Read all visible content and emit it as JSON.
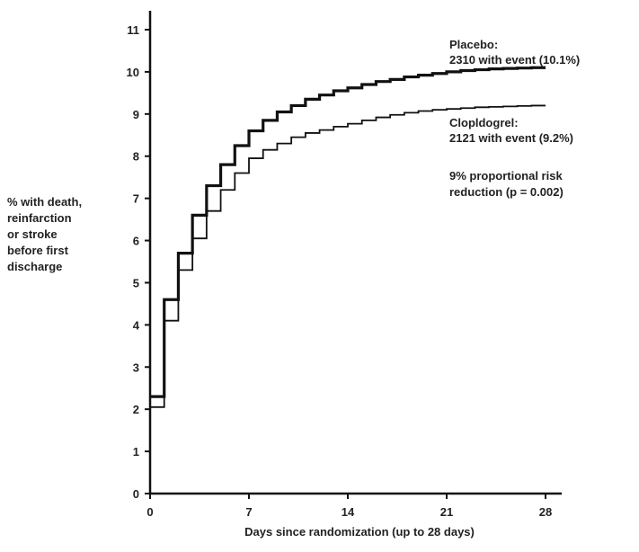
{
  "chart_data": {
    "type": "line",
    "step": true,
    "title": "",
    "xlabel": "Days since randomization (up to 28 days)",
    "ylabel_lines": [
      "% with death,",
      "reinfarction",
      "or stroke",
      "before first",
      "discharge"
    ],
    "xlim": [
      0,
      28
    ],
    "ylim": [
      0,
      11
    ],
    "xticks": [
      0,
      7,
      14,
      21,
      28
    ],
    "yticks": [
      0,
      1,
      2,
      3,
      4,
      5,
      6,
      7,
      8,
      9,
      10,
      11
    ],
    "grid": false,
    "series": [
      {
        "name": "Placebo",
        "color": "#111111",
        "stroke": "bold",
        "x": [
          0,
          1,
          2,
          3,
          4,
          5,
          6,
          7,
          8,
          9,
          10,
          11,
          12,
          13,
          14,
          15,
          16,
          17,
          18,
          19,
          20,
          21,
          22,
          23,
          24,
          25,
          26,
          27,
          28
        ],
        "y": [
          2.3,
          4.6,
          5.7,
          6.6,
          7.3,
          7.8,
          8.25,
          8.6,
          8.85,
          9.05,
          9.2,
          9.35,
          9.45,
          9.55,
          9.62,
          9.7,
          9.77,
          9.82,
          9.88,
          9.92,
          9.96,
          10.0,
          10.03,
          10.05,
          10.07,
          10.08,
          10.09,
          10.1,
          10.1
        ]
      },
      {
        "name": "Clopidogrel",
        "color": "#111111",
        "stroke": "normal",
        "x": [
          0,
          1,
          2,
          3,
          4,
          5,
          6,
          7,
          8,
          9,
          10,
          11,
          12,
          13,
          14,
          15,
          16,
          17,
          18,
          19,
          20,
          21,
          22,
          23,
          24,
          25,
          26,
          27,
          28
        ],
        "y": [
          2.05,
          4.1,
          5.3,
          6.05,
          6.7,
          7.2,
          7.6,
          7.95,
          8.15,
          8.3,
          8.45,
          8.55,
          8.62,
          8.7,
          8.77,
          8.85,
          8.92,
          8.98,
          9.03,
          9.07,
          9.1,
          9.12,
          9.14,
          9.16,
          9.17,
          9.18,
          9.19,
          9.2,
          9.2
        ]
      }
    ],
    "annotations": {
      "placebo_name": "Placebo:",
      "placebo_detail": "2310 with event (10.1%)",
      "clopidogrel_name": "Clopldogrel:",
      "clopidogrel_detail": "2121 with event (9.2%)",
      "risk_line1": "9% proportional risk",
      "risk_line2": "reduction (p = 0.002)"
    }
  }
}
